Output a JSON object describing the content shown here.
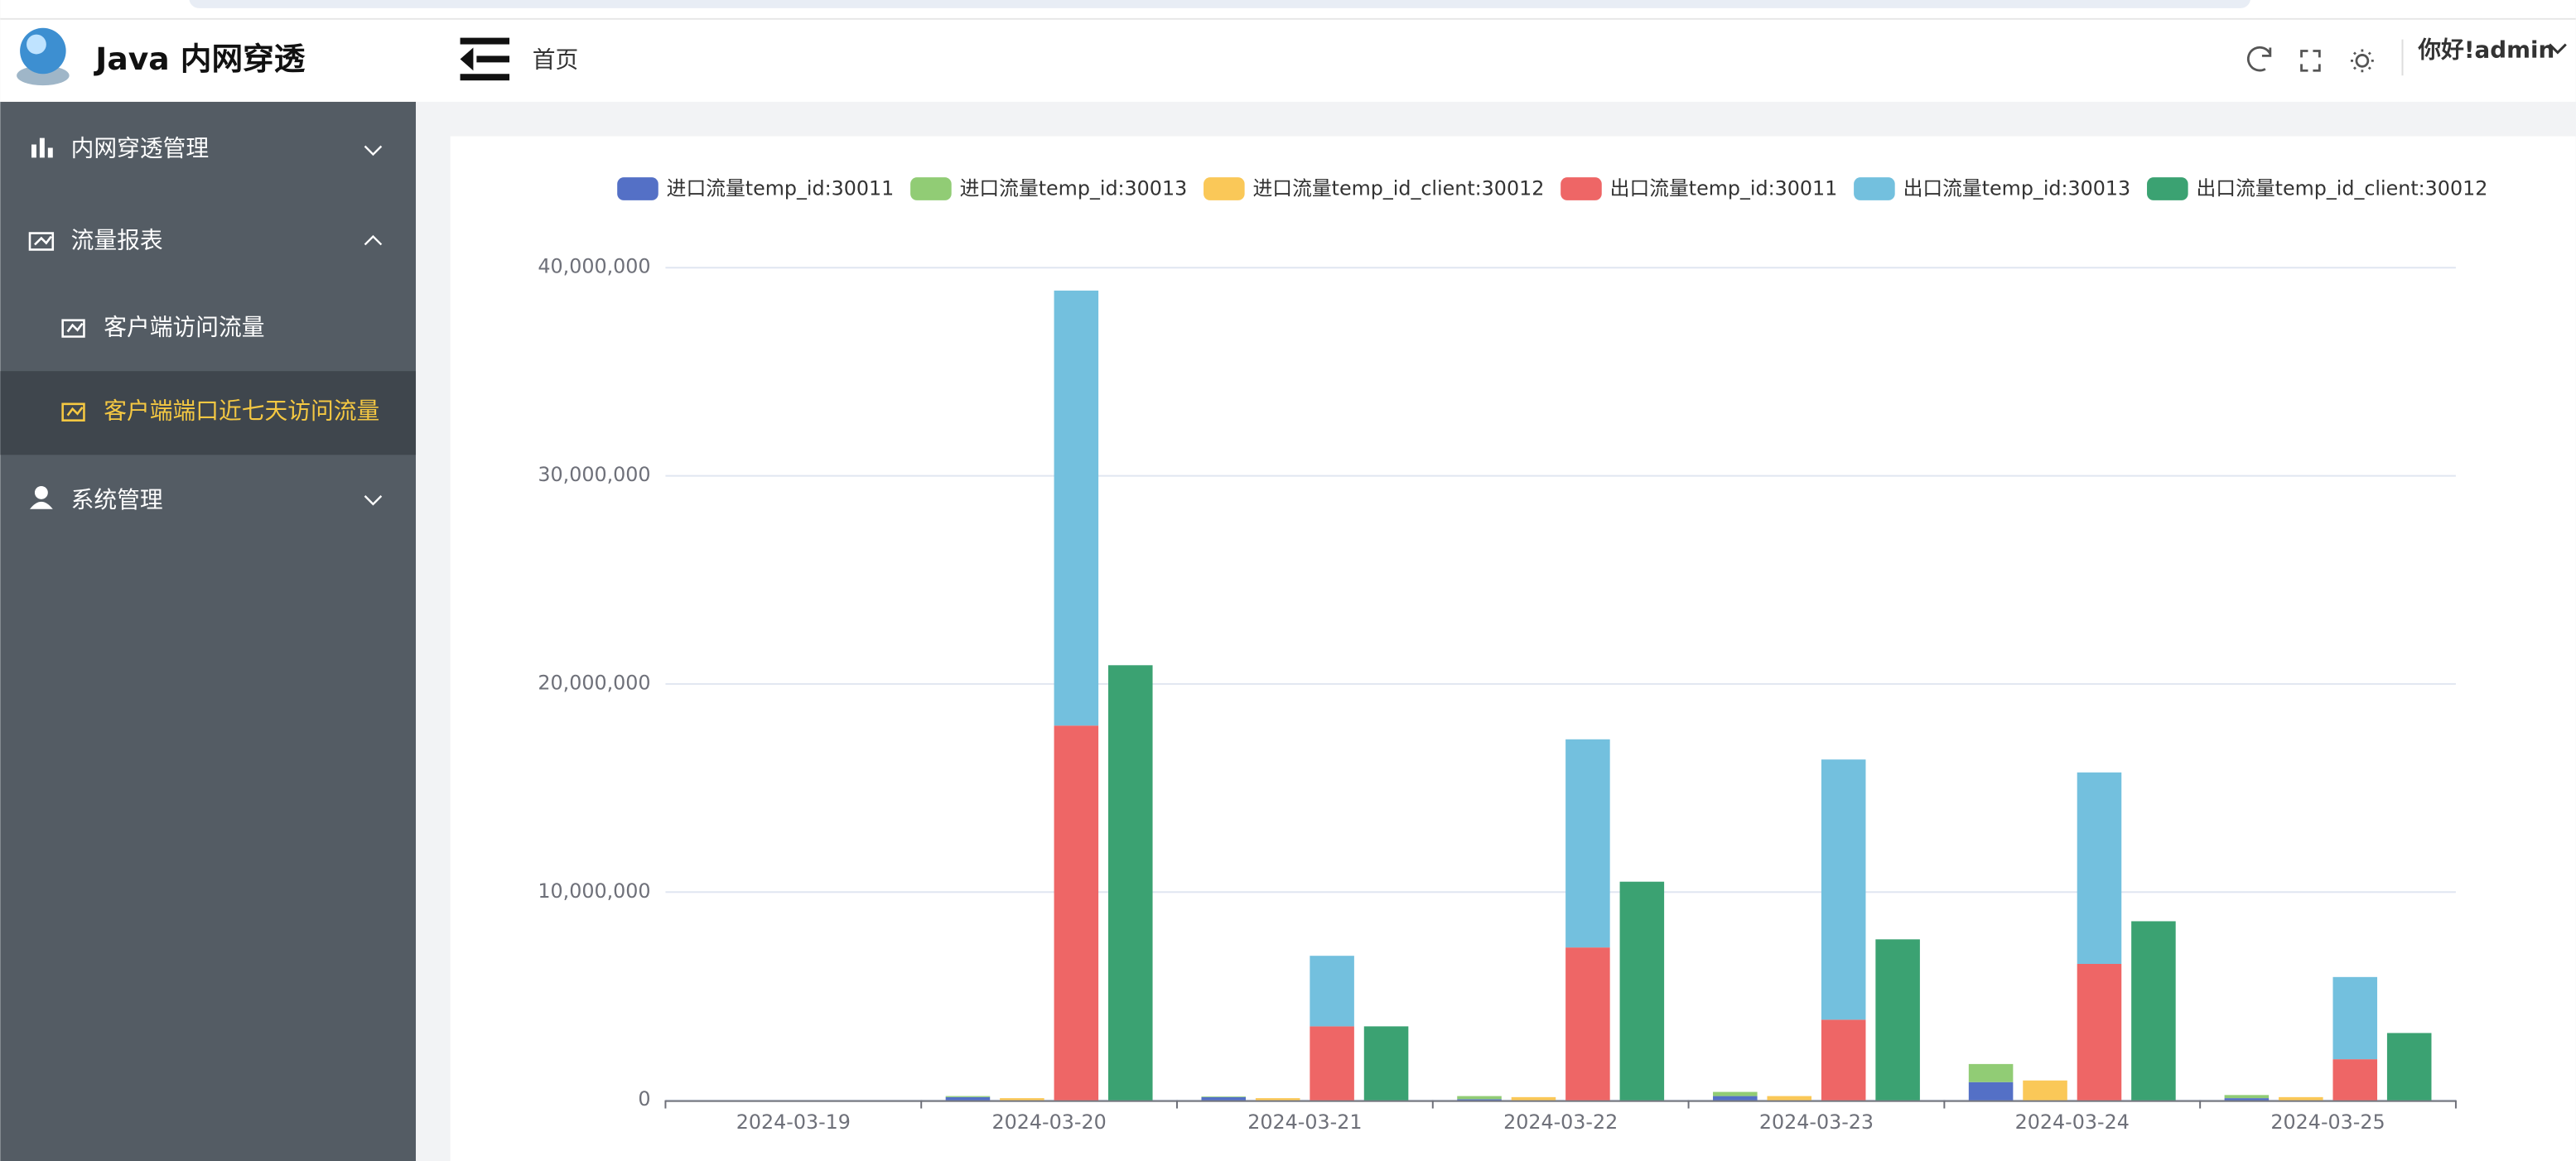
{
  "header": {
    "app_title": "Java 内网穿透",
    "breadcrumb": "首页",
    "user": "你好!admin"
  },
  "sidebar": {
    "menu": [
      {
        "label": "内网穿透管理"
      },
      {
        "label": "流量报表",
        "children": [
          "客户端访问流量",
          "客户端端口近七天访问流量"
        ]
      },
      {
        "label": "系统管理"
      }
    ]
  },
  "chart_data": {
    "type": "bar",
    "legend": "top",
    "categories": [
      "2024-03-19",
      "2024-03-20",
      "2024-03-21",
      "2024-03-22",
      "2024-03-23",
      "2024-03-24",
      "2024-03-25"
    ],
    "ylim": [
      0,
      40000000
    ],
    "yticks": [
      0,
      {
        "value": 10000000,
        "label": "10,000,000"
      },
      {
        "value": 20000000,
        "label": "20,000,000"
      },
      {
        "value": 30000000,
        "label": "30,000,000"
      },
      {
        "value": 40000000,
        "label": "40,000,000"
      }
    ],
    "grid": true,
    "series": [
      {
        "name": "进口流量temp_id:30011",
        "color": "#5470c6",
        "values": [
          0,
          150000,
          150000,
          50000,
          200000,
          870000,
          100000
        ]
      },
      {
        "name": "进口流量temp_id:30013",
        "color": "#91cc75",
        "values": [
          0,
          50000,
          30000,
          150000,
          200000,
          870000,
          150000
        ]
      },
      {
        "name": "进口流量temp_id_client:30012",
        "color": "#fac858",
        "values": [
          0,
          100000,
          100000,
          150000,
          200000,
          950000,
          150000
        ]
      },
      {
        "name": "出口流量temp_id:30011",
        "color": "#ee6666",
        "values": [
          0,
          18000000,
          3550000,
          7340000,
          3870000,
          6550000,
          1970000
        ]
      },
      {
        "name": "出口流量temp_id:30013",
        "color": "#73c0de",
        "values": [
          0,
          20900000,
          3390000,
          10000000,
          12500000,
          9200000,
          3950000
        ]
      },
      {
        "name": "出口流量temp_id_client:30012",
        "color": "#3ba272",
        "values": [
          0,
          20900000,
          3550000,
          10500000,
          7730000,
          8600000,
          3230000
        ]
      }
    ]
  }
}
